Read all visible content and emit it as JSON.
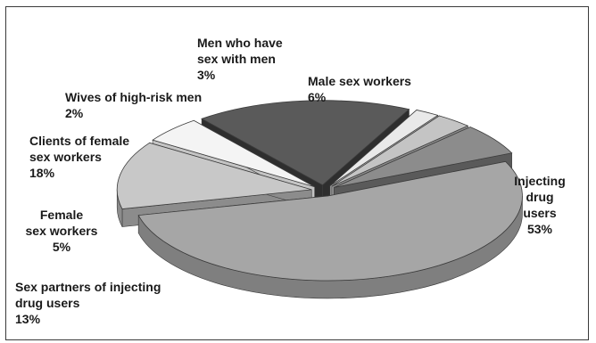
{
  "chart_data": {
    "type": "pie",
    "style": "3d-exploded",
    "slices": [
      {
        "name": "Injecting drug users",
        "label_lines": [
          "Injecting",
          "drug",
          "users"
        ],
        "value": 53,
        "value_label": "53%",
        "color": "#a6a6a6",
        "side_color": "#7f7f7f"
      },
      {
        "name": "Sex partners of injecting drug users",
        "label_lines": [
          "Sex partners of injecting",
          "drug users"
        ],
        "value": 13,
        "value_label": "13%",
        "color": "#c8c8c8",
        "side_color": "#8c8c8c"
      },
      {
        "name": "Female sex workers",
        "label_lines": [
          "Female",
          "sex workers"
        ],
        "value": 5,
        "value_label": "5%",
        "color": "#f4f4f4",
        "side_color": "#c4c4c4"
      },
      {
        "name": "Clients of female sex workers",
        "label_lines": [
          "Clients of female",
          "sex workers"
        ],
        "value": 18,
        "value_label": "18%",
        "color": "#5a5a5a",
        "side_color": "#2e2e2e"
      },
      {
        "name": "Wives of high-risk men",
        "label_lines": [
          "Wives of high-risk men"
        ],
        "value": 2,
        "value_label": "2%",
        "color": "#e9e9e9",
        "side_color": "#b2b2b2"
      },
      {
        "name": "Men who have sex with men",
        "label_lines": [
          "Men who have",
          "sex with men"
        ],
        "value": 3,
        "value_label": "3%",
        "color": "#c4c4c4",
        "side_color": "#8d8d8d"
      },
      {
        "name": "Male sex workers",
        "label_lines": [
          "Male sex workers"
        ],
        "value": 6,
        "value_label": "6%",
        "color": "#8c8c8c",
        "side_color": "#5a5a5a"
      }
    ]
  }
}
